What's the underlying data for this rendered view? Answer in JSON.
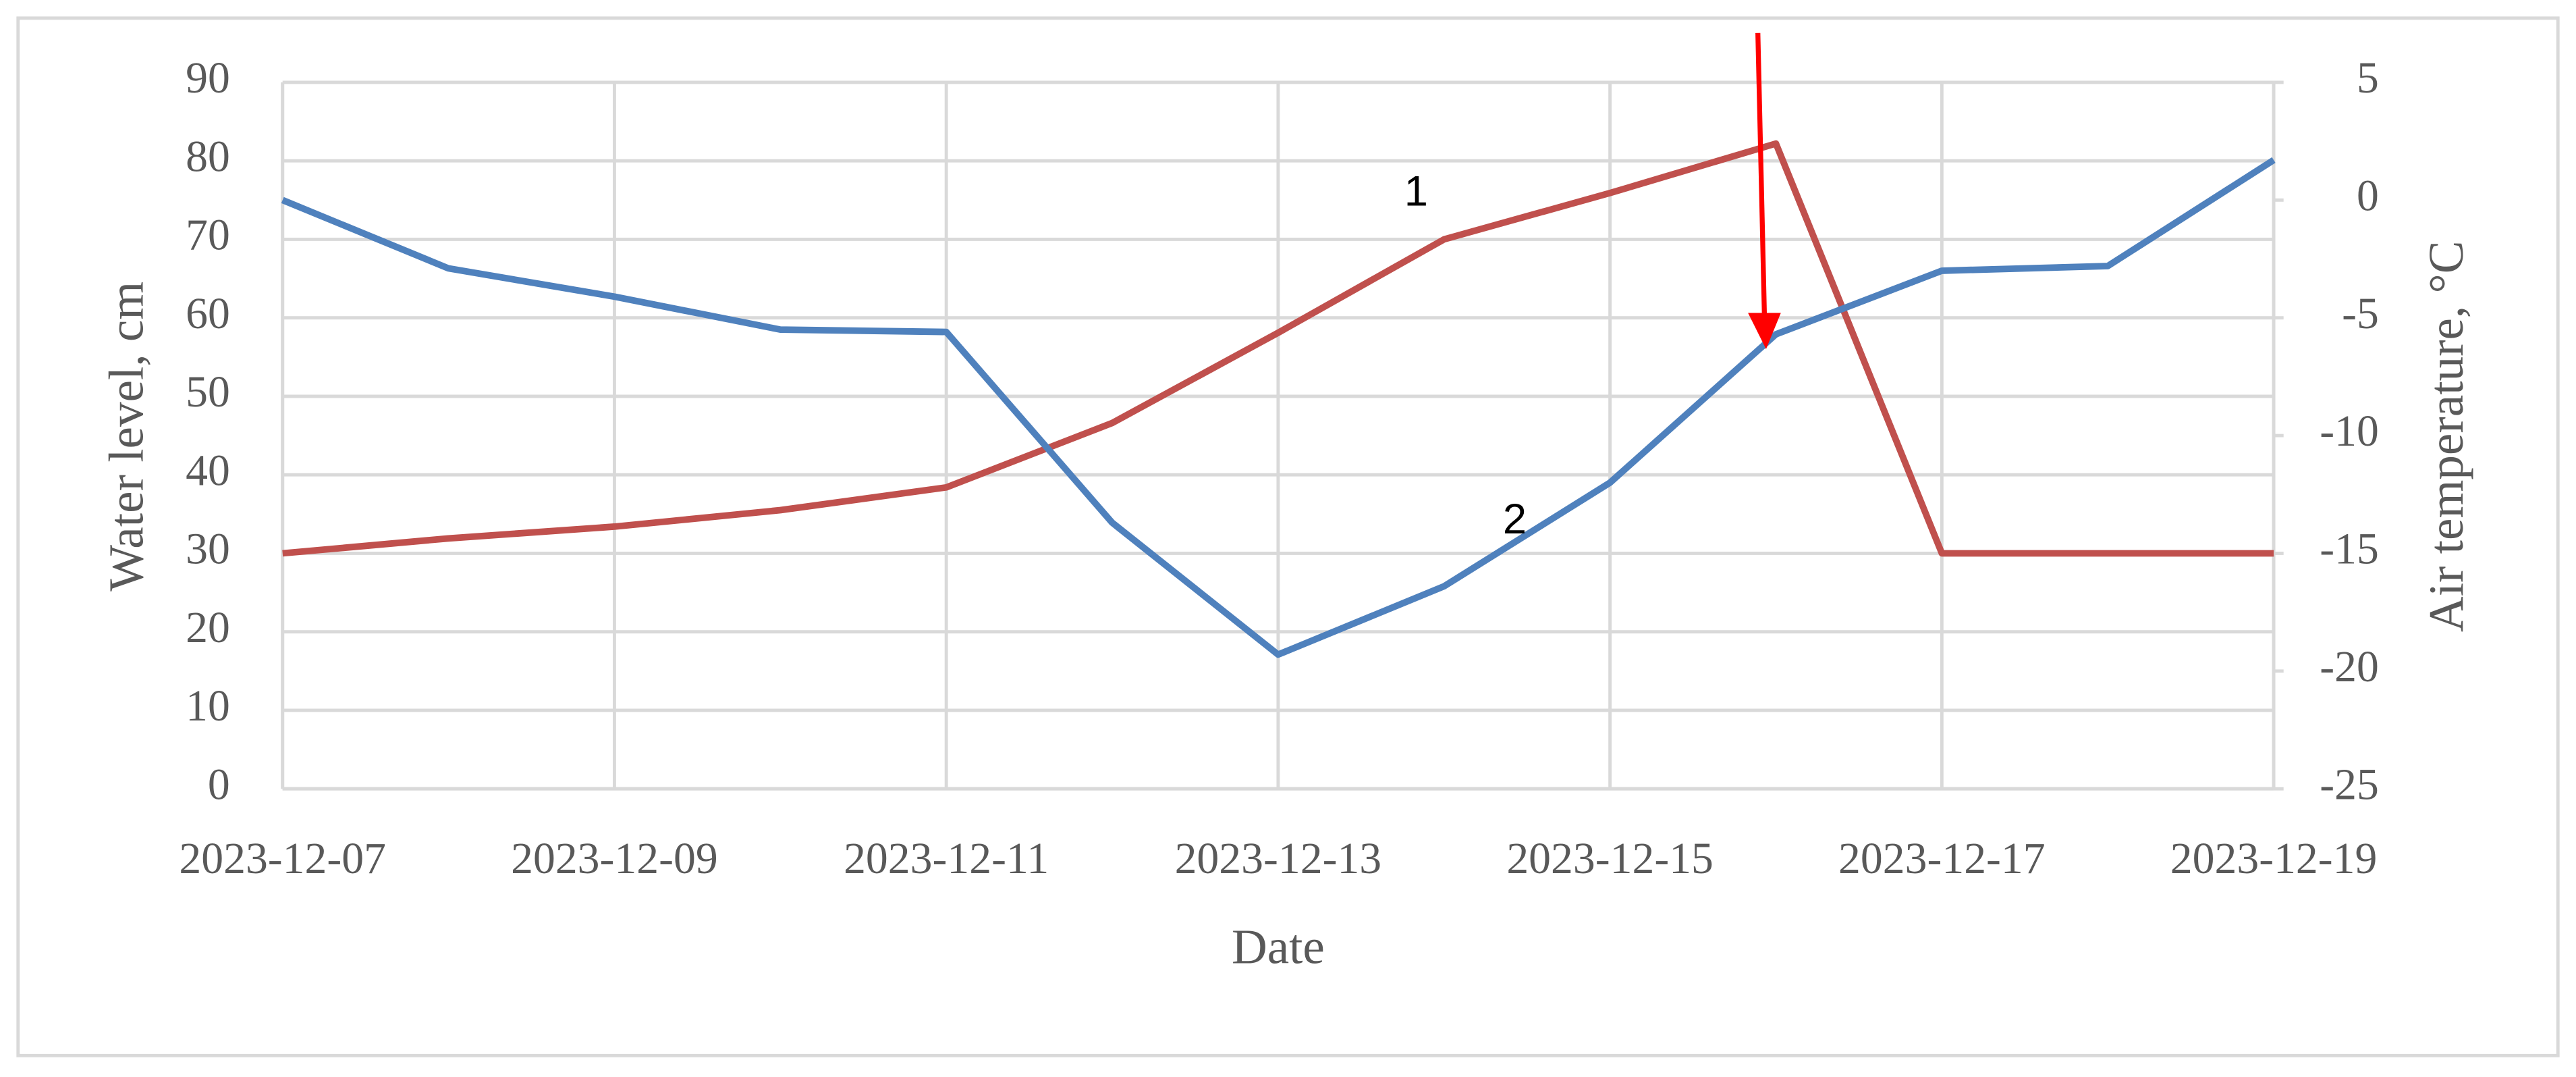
{
  "chart_data": {
    "type": "line",
    "x_label": "Date",
    "y_label": "Water level, cm",
    "y2_label": "Air temperature, °C",
    "x": [
      "2023-12-07",
      "2023-12-08",
      "2023-12-09",
      "2023-12-10",
      "2023-12-11",
      "2023-12-12",
      "2023-12-13",
      "2023-12-14",
      "2023-12-15",
      "2023-12-16",
      "2023-12-17",
      "2023-12-18",
      "2023-12-19"
    ],
    "xlim": [
      "2023-12-07",
      "2023-12-19"
    ],
    "xticks": [
      "2023-12-07",
      "2023-12-09",
      "2023-12-11",
      "2023-12-13",
      "2023-12-15",
      "2023-12-17",
      "2023-12-19"
    ],
    "ylim": [
      0,
      90
    ],
    "yticks": [
      0,
      10,
      20,
      30,
      40,
      50,
      60,
      70,
      80,
      90
    ],
    "y2lim": [
      -25,
      5
    ],
    "y2ticks": [
      -25,
      -20,
      -15,
      -10,
      -5,
      0,
      5
    ],
    "grid": true,
    "series": [
      {
        "label": "1",
        "color": "#c0504d",
        "values": [
          30,
          31.9,
          33.4,
          35.5,
          38.4,
          46.6,
          58.1,
          70,
          75.9,
          82.2,
          30,
          30,
          30
        ]
      },
      {
        "label": "2",
        "color": "#4f81bd",
        "axis": "y2",
        "values": [
          0,
          -2.9,
          -4.1,
          -5.5,
          -5.6,
          -13.7,
          -19.3,
          -16.4,
          -12.0,
          -5.7,
          -3.0,
          -2.8,
          1.7
        ]
      }
    ]
  }
}
